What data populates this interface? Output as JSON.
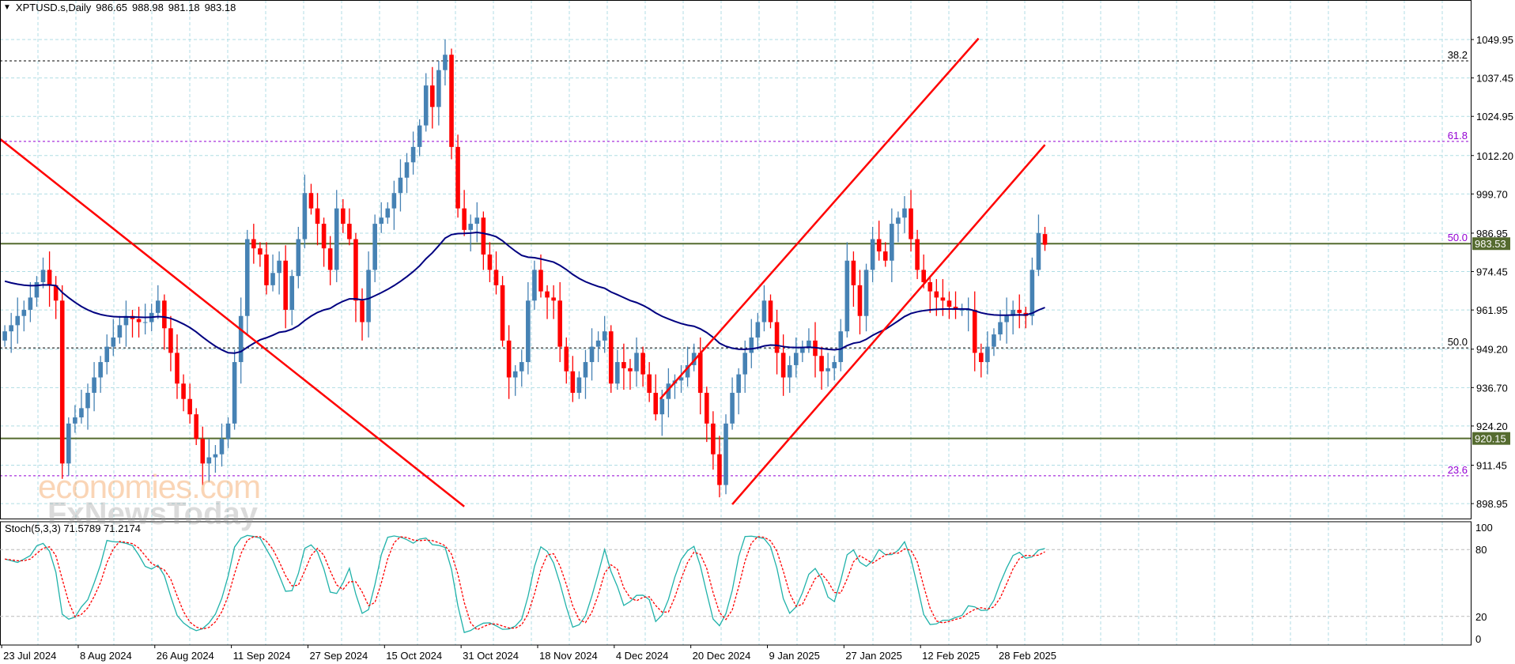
{
  "header": {
    "symbol": "XPTUSD.s,Daily",
    "open": "986.65",
    "high": "988.98",
    "low": "981.18",
    "close": "983.18"
  },
  "stoch_label": "Stoch(5,3,3) 71.5789 71.2174",
  "watermarks": [
    "economies.com",
    "FxNewsToday"
  ],
  "colors": {
    "bull": "#4682b4",
    "bear": "#ff0000",
    "ma": "#000080",
    "stoch_main": "#20b2aa",
    "stoch_signal": "#ff0000",
    "trend": "#ff0000",
    "fib": "#9400d3",
    "level": "#556b2f",
    "grid": "#b0dde4"
  },
  "chart_data": {
    "type": "candlestick",
    "title": "XPTUSD.s, Daily",
    "price_ticks": [
      "1049.95",
      "1037.45",
      "1024.95",
      "1012.20",
      "999.70",
      "986.95",
      "974.45",
      "961.95",
      "949.20",
      "936.70",
      "924.20",
      "911.45",
      "898.95"
    ],
    "ylim": [
      895,
      1060
    ],
    "date_labels": [
      "23 Jul 2024",
      "8 Aug 2024",
      "26 Aug 2024",
      "11 Sep 2024",
      "27 Sep 2024",
      "15 Oct 2024",
      "31 Oct 2024",
      "18 Nov 2024",
      "4 Dec 2024",
      "20 Dec 2024",
      "9 Jan 2025",
      "27 Jan 2025",
      "12 Feb 2025",
      "28 Feb 2025"
    ],
    "date_label_bar_index": [
      0,
      12,
      24,
      36,
      48,
      60,
      72,
      84,
      96,
      108,
      120,
      132,
      144,
      156
    ],
    "closes": [
      955,
      957,
      960,
      962,
      966,
      971,
      975,
      970,
      965,
      912,
      925,
      927,
      930,
      935,
      940,
      945,
      950,
      953,
      957,
      960,
      959,
      958,
      958,
      961,
      965,
      956,
      948,
      938,
      933,
      928,
      920,
      912,
      914,
      915,
      920,
      925,
      945,
      960,
      985,
      982,
      980,
      970,
      974,
      978,
      962,
      973,
      985,
      1000,
      995,
      990,
      982,
      975,
      995,
      990,
      985,
      965,
      958,
      975,
      990,
      992,
      995,
      1000,
      1005,
      1010,
      1015,
      1022,
      1035,
      1028,
      1040,
      1045,
      1015,
      995,
      988,
      990,
      992,
      980,
      975,
      970,
      952,
      940,
      942,
      945,
      965,
      975,
      968,
      966,
      965,
      950,
      942,
      935,
      940,
      945,
      950,
      952,
      955,
      938,
      945,
      943,
      942,
      948,
      941,
      935,
      928,
      933,
      938,
      939,
      940,
      944,
      948,
      935,
      925,
      915,
      905,
      925,
      935,
      941,
      948,
      953,
      958,
      965,
      958,
      948,
      940,
      944,
      948,
      950,
      952,
      947,
      942,
      943,
      945,
      955,
      978,
      970,
      960,
      975,
      985,
      981,
      978,
      990,
      992,
      995,
      985,
      975,
      971,
      968,
      966,
      965,
      963,
      962,
      962,
      962,
      948,
      945,
      950,
      954,
      958,
      960,
      962,
      961,
      960,
      975,
      987,
      983.18
    ],
    "last_bar": {
      "open": 986.65,
      "high": 988.98,
      "low": 981.18,
      "close": 983.18
    },
    "moving_average": {
      "type": "EMA",
      "period": 50,
      "seed": 972
    },
    "trendlines": [
      {
        "name": "descending-trendline",
        "from": [
          -1,
          1018
        ],
        "to": [
          72,
          898
        ]
      },
      {
        "name": "channel-upper",
        "from": [
          102.7,
          933
        ],
        "to": [
          152.6,
          1050.3
        ]
      },
      {
        "name": "channel-lower",
        "from": [
          114,
          898.7
        ],
        "to": [
          163,
          1015.7
        ]
      }
    ],
    "fib_levels": [
      {
        "label": "38.2",
        "price": 1043.0,
        "color": "#000000"
      },
      {
        "label": "61.8",
        "price": 1016.8,
        "color": "#9400d3"
      },
      {
        "label": "50.0",
        "price": 983.53,
        "color": "#9400d3"
      },
      {
        "label": "50.0",
        "price": 949.6,
        "color": "#000000"
      },
      {
        "label": "23.6",
        "price": 908.0,
        "color": "#9400d3"
      }
    ],
    "horizontal_levels": [
      {
        "price": 983.53,
        "label": "983.53"
      },
      {
        "price": 920.15,
        "label": "920.15"
      }
    ],
    "stochastic": {
      "k": 5,
      "d": 3,
      "slowing": 3,
      "levels": [
        "100",
        "80",
        "20",
        "0"
      ],
      "main": 71.5789,
      "signal": 71.2174
    }
  }
}
